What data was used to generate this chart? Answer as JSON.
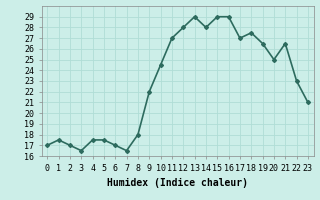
{
  "x": [
    0,
    1,
    2,
    3,
    4,
    5,
    6,
    7,
    8,
    9,
    10,
    11,
    12,
    13,
    14,
    15,
    16,
    17,
    18,
    19,
    20,
    21,
    22,
    23
  ],
  "y": [
    17,
    17.5,
    17,
    16.5,
    17.5,
    17.5,
    17,
    16.5,
    18,
    22,
    24.5,
    27,
    28,
    29,
    28,
    29,
    29,
    27,
    27.5,
    26.5,
    25,
    26.5,
    23,
    21
  ],
  "line_color": "#2d6b5e",
  "marker": "D",
  "marker_size": 2.0,
  "background_color": "#cceee8",
  "grid_color": "#b0ddd6",
  "xlabel": "Humidex (Indice chaleur)",
  "xlabel_fontsize": 7,
  "ylim": [
    16,
    30
  ],
  "xlim": [
    -0.5,
    23.5
  ],
  "yticks": [
    16,
    17,
    18,
    19,
    20,
    21,
    22,
    23,
    24,
    25,
    26,
    27,
    28,
    29
  ],
  "xticks": [
    0,
    1,
    2,
    3,
    4,
    5,
    6,
    7,
    8,
    9,
    10,
    11,
    12,
    13,
    14,
    15,
    16,
    17,
    18,
    19,
    20,
    21,
    22,
    23
  ],
  "tick_fontsize": 6,
  "line_width": 1.2
}
